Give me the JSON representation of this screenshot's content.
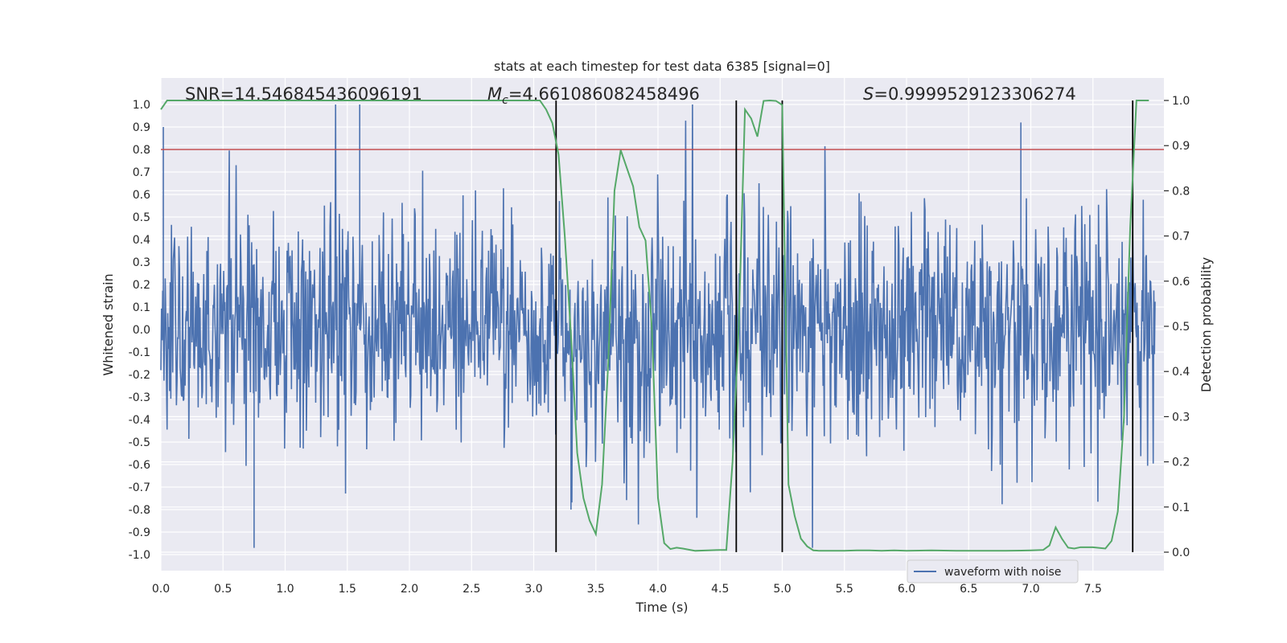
{
  "chart_data": {
    "type": "line",
    "title": "stats at each timestep for test data 6385 [signal=0]",
    "xlabel": "Time (s)",
    "ylabel_left": "Whitened strain",
    "ylabel_right": "Detection probability",
    "xlim": [
      0,
      8.0
    ],
    "ylim_left": [
      -1.05,
      1.05
    ],
    "ylim_right": [
      -0.05,
      1.0
    ],
    "x_ticks": [
      "0.0",
      "0.5",
      "1.0",
      "1.5",
      "2.0",
      "2.5",
      "3.0",
      "3.5",
      "4.0",
      "4.5",
      "5.0",
      "5.5",
      "6.0",
      "6.5",
      "7.0",
      "7.5"
    ],
    "left_ticks": [
      "1.0",
      "0.9",
      "0.8",
      "0.7",
      "0.6",
      "0.5",
      "0.4",
      "0.3",
      "0.2",
      "0.1",
      "0.0",
      "-0.1",
      "-0.2",
      "-0.3",
      "-0.4",
      "-0.5",
      "-0.6",
      "-0.7",
      "-0.8",
      "-0.9",
      "-1.0"
    ],
    "right_ticks": [
      "1.0",
      "0.9",
      "0.8",
      "0.7",
      "0.6",
      "0.5",
      "0.4",
      "0.3",
      "0.2",
      "0.1",
      "0.0"
    ],
    "annotations": {
      "snr": "SNR=14.546845436096191",
      "mc_symbol": "M",
      "mc_sub": "c",
      "mc_value": "=4.661086082458496",
      "s_symbol": "S",
      "s_value": "=0.9999529123306274"
    },
    "threshold": 0.8,
    "vertical_lines": [
      3.18,
      4.63,
      5.0,
      7.82
    ],
    "legend": {
      "label": "waveform with noise",
      "location": "lower right"
    },
    "waveform": {
      "name": "waveform with noise",
      "color": "#4c72b0",
      "n_samples": 1600,
      "typical_amplitude": 0.45,
      "peak_amplitude": 1.0
    },
    "probability": {
      "name": "detection probability",
      "color": "#55a868",
      "x": [
        0.0,
        0.05,
        0.1,
        0.5,
        1.0,
        1.5,
        2.0,
        2.5,
        3.0,
        3.05,
        3.1,
        3.15,
        3.2,
        3.25,
        3.3,
        3.35,
        3.4,
        3.45,
        3.5,
        3.55,
        3.6,
        3.65,
        3.7,
        3.75,
        3.8,
        3.85,
        3.9,
        3.95,
        4.0,
        4.05,
        4.1,
        4.15,
        4.2,
        4.3,
        4.4,
        4.5,
        4.55,
        4.6,
        4.65,
        4.7,
        4.75,
        4.8,
        4.85,
        4.9,
        4.95,
        5.0,
        5.05,
        5.1,
        5.15,
        5.2,
        5.25,
        5.3,
        5.4,
        5.5,
        5.6,
        5.7,
        5.8,
        5.9,
        6.0,
        6.2,
        6.4,
        6.6,
        6.8,
        7.0,
        7.1,
        7.15,
        7.2,
        7.25,
        7.3,
        7.35,
        7.4,
        7.5,
        7.6,
        7.65,
        7.7,
        7.75,
        7.8,
        7.85,
        7.9,
        7.95
      ],
      "y": [
        0.98,
        1.0,
        1.0,
        1.0,
        1.0,
        1.0,
        1.0,
        1.0,
        1.0,
        1.0,
        0.98,
        0.95,
        0.88,
        0.7,
        0.48,
        0.22,
        0.12,
        0.07,
        0.04,
        0.15,
        0.42,
        0.8,
        0.89,
        0.85,
        0.81,
        0.72,
        0.69,
        0.5,
        0.12,
        0.02,
        0.007,
        0.01,
        0.008,
        0.003,
        0.004,
        0.005,
        0.005,
        0.2,
        0.5,
        0.98,
        0.96,
        0.92,
        0.999,
        1.0,
        0.999,
        0.99,
        0.15,
        0.08,
        0.03,
        0.013,
        0.004,
        0.003,
        0.003,
        0.003,
        0.004,
        0.004,
        0.003,
        0.004,
        0.003,
        0.004,
        0.003,
        0.003,
        0.003,
        0.004,
        0.005,
        0.015,
        0.055,
        0.03,
        0.01,
        0.008,
        0.011,
        0.011,
        0.008,
        0.025,
        0.09,
        0.3,
        0.72,
        1.0,
        1.0,
        1.0
      ]
    }
  }
}
